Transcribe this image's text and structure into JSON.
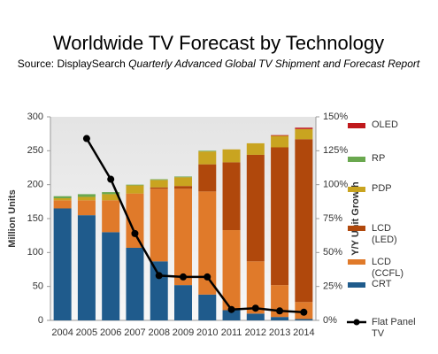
{
  "chart_data": {
    "type": "bar",
    "title": "Worldwide TV Forecast by Technology",
    "source_label": "Source: DisplaySearch",
    "source_report": "Quarterly Advanced Global TV Shipment and Forecast Report",
    "y_label": "Million Units",
    "y2_label": "Y/Y Unit Growth",
    "categories": [
      "2004",
      "2005",
      "2006",
      "2007",
      "2008",
      "2009",
      "2010",
      "2011",
      "2012",
      "2013",
      "2014"
    ],
    "stacked": true,
    "series": [
      {
        "name": "CRT",
        "color": "#1f5b8c",
        "values": [
          165,
          155,
          130,
          107,
          87,
          52,
          38,
          15,
          10,
          5,
          2
        ]
      },
      {
        "name": "LCD (CCFL)",
        "color": "#e07a2a",
        "values": [
          12,
          22,
          47,
          80,
          107,
          142,
          152,
          118,
          77,
          47,
          25
        ]
      },
      {
        "name": "LCD (LED)",
        "color": "#b0480c",
        "values": [
          0,
          0,
          0,
          0,
          2,
          4,
          40,
          100,
          157,
          203,
          240
        ]
      },
      {
        "name": "PDP",
        "color": "#c9a420",
        "values": [
          3,
          5,
          9,
          12,
          11,
          13,
          19,
          19,
          17,
          17,
          15
        ]
      },
      {
        "name": "RP",
        "color": "#6aa84f",
        "values": [
          3,
          4,
          3,
          1,
          1,
          1,
          1,
          0,
          0,
          0,
          0
        ]
      },
      {
        "name": "OLED",
        "color": "#c0191c",
        "values": [
          0,
          0,
          0,
          0,
          0,
          0,
          0,
          0,
          0,
          1,
          2
        ]
      },
      {
        "name": "Flat Panel TV",
        "color": "#000000",
        "type": "line",
        "axis": "y2",
        "values": [
          null,
          134,
          104,
          64,
          33,
          32,
          32,
          8,
          9,
          7,
          6
        ]
      }
    ],
    "ylim": [
      0,
      300
    ],
    "yticks": [
      0,
      50,
      100,
      150,
      200,
      250,
      300
    ],
    "y2lim": [
      0,
      150
    ],
    "y2ticks": [
      {
        "value": 0,
        "label": "0%"
      },
      {
        "value": 25,
        "label": "25%"
      },
      {
        "value": 50,
        "label": "50%"
      },
      {
        "value": 75,
        "label": "75%"
      },
      {
        "value": 100,
        "label": "100%"
      },
      {
        "value": 125,
        "label": "125%"
      },
      {
        "value": 150,
        "label": "150%"
      }
    ]
  }
}
